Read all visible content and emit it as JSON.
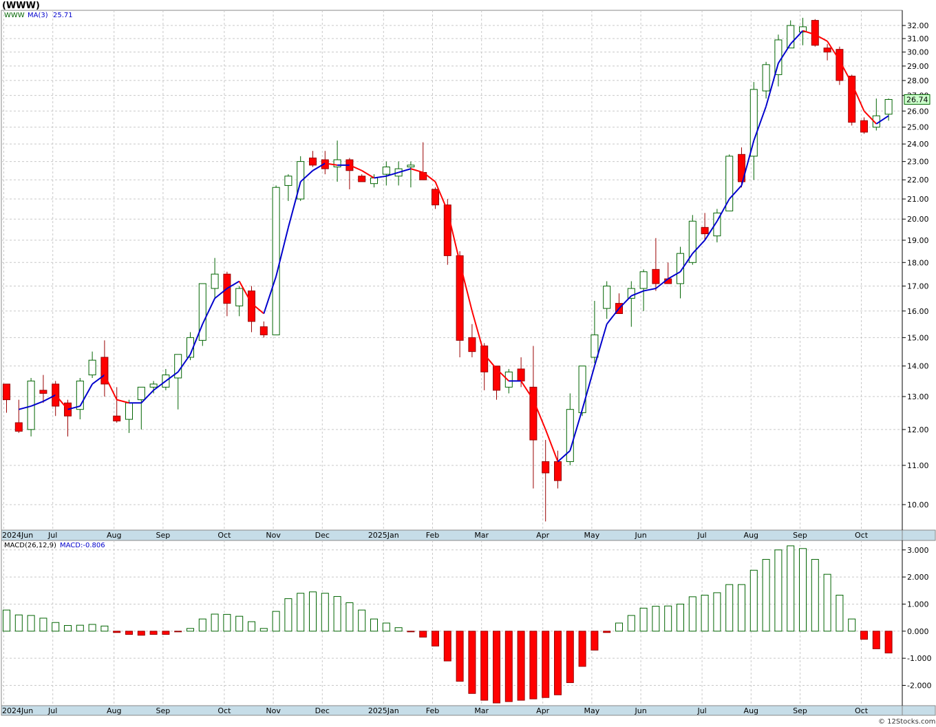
{
  "title": "(WWW)",
  "watermark": "© 12Stocks.com",
  "colors": {
    "up": "#006400",
    "down": "#ff0000",
    "ma_up": "#0000cc",
    "ma_down": "#ff0000",
    "grid": "#c8c8c8",
    "axis_band": "#c6dde8",
    "price_box": "#ccffcc"
  },
  "chart_data": [
    {
      "type": "candlestick",
      "scale": "log",
      "ticker_label": "WWW",
      "ma_label": "MA(3)",
      "ma_value": "25.71",
      "last_price": "26.74",
      "ylim": [
        9.4,
        33.2
      ],
      "yticks": [
        10,
        11,
        12,
        13,
        14,
        15,
        16,
        17,
        18,
        19,
        20,
        21,
        22,
        23,
        24,
        25,
        26,
        27,
        28,
        29,
        30,
        31,
        32
      ],
      "ytick_labels": [
        "10.00",
        "11.00",
        "12.00",
        "13.00",
        "14.00",
        "15.00",
        "16.00",
        "17.00",
        "18.00",
        "19.00",
        "20.00",
        "21.00",
        "22.00",
        "23.00",
        "24.00",
        "25.00",
        "26.00",
        "27.00",
        "28.00",
        "29.00",
        "30.00",
        "31.00",
        "32.00"
      ],
      "months": [
        {
          "label": "2024Jun",
          "week": 0
        },
        {
          "label": "Jul",
          "week": 4
        },
        {
          "label": "Aug",
          "week": 9
        },
        {
          "label": "Sep",
          "week": 13
        },
        {
          "label": "Oct",
          "week": 18
        },
        {
          "label": "Nov",
          "week": 22
        },
        {
          "label": "Dec",
          "week": 26
        },
        {
          "label": "2025Jan",
          "week": 31
        },
        {
          "label": "Feb",
          "week": 35
        },
        {
          "label": "Mar",
          "week": 39
        },
        {
          "label": "Apr",
          "week": 44
        },
        {
          "label": "May",
          "week": 48
        },
        {
          "label": "Jun",
          "week": 52
        },
        {
          "label": "Jul",
          "week": 57
        },
        {
          "label": "Aug",
          "week": 61
        },
        {
          "label": "Sep",
          "week": 65
        },
        {
          "label": "Oct",
          "week": 70
        }
      ],
      "candles": [
        [
          13.4,
          13.4,
          12.5,
          12.9
        ],
        [
          12.2,
          12.9,
          11.9,
          11.95
        ],
        [
          12.0,
          13.6,
          11.8,
          13.5
        ],
        [
          13.2,
          13.7,
          12.8,
          13.1
        ],
        [
          13.4,
          13.5,
          12.4,
          12.7
        ],
        [
          12.8,
          12.9,
          11.8,
          12.4
        ],
        [
          12.6,
          13.6,
          12.3,
          13.5
        ],
        [
          13.7,
          14.5,
          13.6,
          14.2
        ],
        [
          14.3,
          14.9,
          13.0,
          13.4
        ],
        [
          12.4,
          13.3,
          12.2,
          12.25
        ],
        [
          12.3,
          12.9,
          11.9,
          12.8
        ],
        [
          12.9,
          13.3,
          12.0,
          13.3
        ],
        [
          13.3,
          13.5,
          13.1,
          13.4
        ],
        [
          13.3,
          13.9,
          13.2,
          13.7
        ],
        [
          13.6,
          14.4,
          12.6,
          14.4
        ],
        [
          14.3,
          15.2,
          14.2,
          15.0
        ],
        [
          14.9,
          17.1,
          14.7,
          17.1
        ],
        [
          16.9,
          18.2,
          16.5,
          17.5
        ],
        [
          17.5,
          17.6,
          15.8,
          16.3
        ],
        [
          16.2,
          17.0,
          15.8,
          16.9
        ],
        [
          16.8,
          17.0,
          15.2,
          15.6
        ],
        [
          15.4,
          15.6,
          15.0,
          15.1
        ],
        [
          15.1,
          21.7,
          15.1,
          21.6
        ],
        [
          21.7,
          22.3,
          20.9,
          22.2
        ],
        [
          21.0,
          23.3,
          20.9,
          23.0
        ],
        [
          23.2,
          23.6,
          22.7,
          22.8
        ],
        [
          23.1,
          23.6,
          22.3,
          22.6
        ],
        [
          22.7,
          24.2,
          21.9,
          23.1
        ],
        [
          23.1,
          23.2,
          21.5,
          22.5
        ],
        [
          22.2,
          22.3,
          22.0,
          21.9
        ],
        [
          21.8,
          22.3,
          21.6,
          22.1
        ],
        [
          22.3,
          23.0,
          21.7,
          22.7
        ],
        [
          22.2,
          23.0,
          21.7,
          22.6
        ],
        [
          22.7,
          23.0,
          21.6,
          22.8
        ],
        [
          22.4,
          24.1,
          22.1,
          22.0
        ],
        [
          21.5,
          21.6,
          20.5,
          20.7
        ],
        [
          20.7,
          21.0,
          17.9,
          18.3
        ],
        [
          18.3,
          18.5,
          14.3,
          14.9
        ],
        [
          15.0,
          15.5,
          14.3,
          14.5
        ],
        [
          14.7,
          14.8,
          13.2,
          13.8
        ],
        [
          14.0,
          14.0,
          12.9,
          13.2
        ],
        [
          13.3,
          13.9,
          13.1,
          13.8
        ],
        [
          13.9,
          14.3,
          13.3,
          13.5
        ],
        [
          13.3,
          14.7,
          10.4,
          11.7
        ],
        [
          11.1,
          11.7,
          9.6,
          10.8
        ],
        [
          11.1,
          11.4,
          10.4,
          10.6
        ],
        [
          11.1,
          13.1,
          11.0,
          12.6
        ],
        [
          12.5,
          14.0,
          12.4,
          14.0
        ],
        [
          14.3,
          16.4,
          14.1,
          15.1
        ],
        [
          16.1,
          17.2,
          15.7,
          17.0
        ],
        [
          16.3,
          16.7,
          15.9,
          15.9
        ],
        [
          16.5,
          17.2,
          15.4,
          16.9
        ],
        [
          16.9,
          17.7,
          16.0,
          17.6
        ],
        [
          17.7,
          19.1,
          16.8,
          17.1
        ],
        [
          17.3,
          18.0,
          17.1,
          17.1
        ],
        [
          17.1,
          18.7,
          16.5,
          18.4
        ],
        [
          18.0,
          20.2,
          17.9,
          19.9
        ],
        [
          19.6,
          20.3,
          19.0,
          19.3
        ],
        [
          19.2,
          20.5,
          18.9,
          20.3
        ],
        [
          20.4,
          23.4,
          20.4,
          23.3
        ],
        [
          23.4,
          23.8,
          21.6,
          21.9
        ],
        [
          23.3,
          27.9,
          22.0,
          27.4
        ],
        [
          27.3,
          29.3,
          26.8,
          29.1
        ],
        [
          28.4,
          31.3,
          27.6,
          30.9
        ],
        [
          30.3,
          32.4,
          30.3,
          32.0
        ],
        [
          31.5,
          32.6,
          30.5,
          31.9
        ],
        [
          32.4,
          32.5,
          30.4,
          30.5
        ],
        [
          30.3,
          30.6,
          29.4,
          30.0
        ],
        [
          30.2,
          30.4,
          27.7,
          28.0
        ],
        [
          28.3,
          28.4,
          25.1,
          25.3
        ],
        [
          25.4,
          25.6,
          24.6,
          24.7
        ],
        [
          25.0,
          26.8,
          24.8,
          25.7
        ],
        [
          25.8,
          26.8,
          25.4,
          26.74
        ]
      ],
      "ma3": [
        null,
        12.6,
        12.7,
        12.85,
        13.05,
        12.6,
        12.7,
        13.4,
        13.7,
        12.9,
        12.8,
        12.8,
        13.2,
        13.5,
        13.8,
        14.4,
        15.5,
        16.5,
        16.9,
        17.2,
        16.3,
        15.9,
        17.4,
        19.6,
        21.9,
        22.5,
        22.9,
        22.8,
        22.8,
        22.5,
        22.1,
        22.2,
        22.4,
        22.6,
        22.4,
        21.9,
        20.4,
        18.0,
        16.0,
        14.4,
        13.9,
        13.5,
        13.5,
        12.9,
        12.0,
        11.1,
        11.4,
        12.6,
        14.0,
        15.5,
        16.1,
        16.6,
        16.8,
        16.9,
        17.3,
        17.6,
        18.4,
        19.0,
        19.9,
        21.0,
        21.7,
        24.2,
        26.3,
        29.2,
        30.6,
        31.6,
        31.3,
        30.8,
        29.4,
        27.8,
        26.0,
        25.2,
        25.7
      ]
    },
    {
      "type": "bar",
      "label": "MACD(26,12,9)",
      "value_label": "MACD:-0.806",
      "ylim": [
        -2.75,
        3.35
      ],
      "yticks": [
        -2,
        -1,
        0,
        1,
        2,
        3
      ],
      "ytick_labels": [
        "-2.000",
        "-1.000",
        "0.000",
        "1.000",
        "2.000",
        "3.000"
      ],
      "values": [
        0.78,
        0.6,
        0.58,
        0.48,
        0.32,
        0.21,
        0.22,
        0.25,
        0.19,
        -0.05,
        -0.12,
        -0.15,
        -0.12,
        -0.12,
        -0.02,
        0.1,
        0.45,
        0.63,
        0.62,
        0.55,
        0.35,
        0.1,
        0.73,
        1.2,
        1.4,
        1.45,
        1.4,
        1.28,
        1.05,
        0.78,
        0.45,
        0.3,
        0.13,
        -0.02,
        -0.22,
        -0.55,
        -1.1,
        -1.85,
        -2.3,
        -2.55,
        -2.65,
        -2.6,
        -2.55,
        -2.5,
        -2.45,
        -2.35,
        -1.9,
        -1.3,
        -0.7,
        -0.05,
        0.3,
        0.58,
        0.85,
        0.92,
        0.93,
        1.0,
        1.27,
        1.33,
        1.42,
        1.72,
        1.72,
        2.25,
        2.65,
        3.0,
        3.15,
        3.05,
        2.65,
        2.1,
        1.33,
        0.45,
        -0.3,
        -0.65,
        -0.806
      ]
    }
  ]
}
